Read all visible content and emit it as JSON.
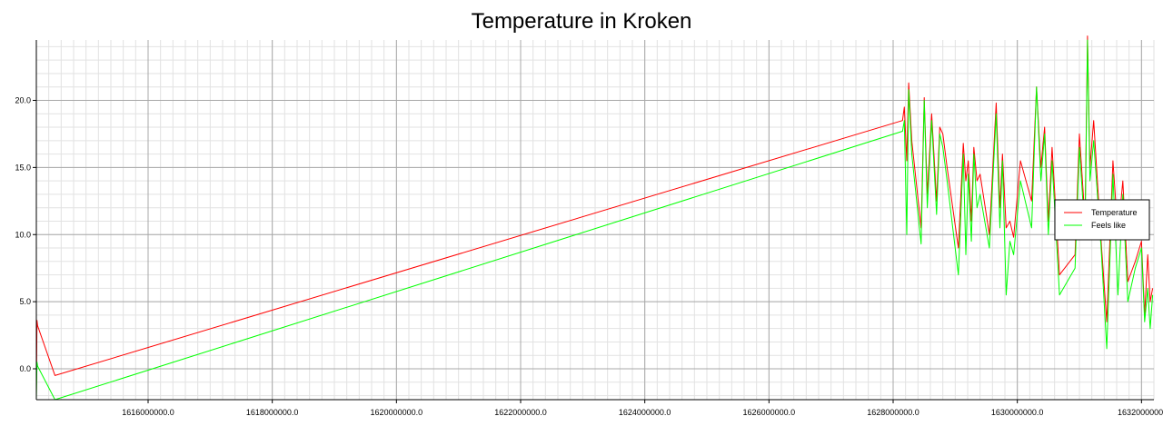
{
  "chart_data": {
    "type": "line",
    "title": "Temperature in Kroken",
    "xlabel": "",
    "ylabel": "",
    "xlim": [
      1614200000,
      1632200000
    ],
    "ylim": [
      -2.3,
      24.5
    ],
    "grid": true,
    "legend_position": "right",
    "x_ticks": [
      1616000000,
      1618000000,
      1620000000,
      1622000000,
      1624000000,
      1626000000,
      1628000000,
      1630000000,
      1632000000
    ],
    "x_tick_labels": [
      "1616000000.0",
      "1618000000.0",
      "1620000000.0",
      "1622000000.0",
      "1624000000.0",
      "1626000000.0",
      "1628000000.0",
      "1630000000.0",
      "1632000000."
    ],
    "y_ticks": [
      0,
      5,
      10,
      15,
      20
    ],
    "y_tick_labels": [
      "0.0",
      "5.0",
      "10.0",
      "15.0",
      "20.0"
    ],
    "colors": {
      "temperature": "#ff0000",
      "feels_like": "#00ff00"
    },
    "series": [
      {
        "name": "Temperature",
        "color": "#ff0000",
        "x": [
          1614200000,
          1614210000,
          1614220000,
          1614500000,
          1628150000,
          1628180000,
          1628220000,
          1628250000,
          1628300000,
          1628450000,
          1628500000,
          1628550000,
          1628620000,
          1628700000,
          1628750000,
          1628800000,
          1628870000,
          1629050000,
          1629130000,
          1629170000,
          1629210000,
          1629260000,
          1629300000,
          1629350000,
          1629400000,
          1629550000,
          1629660000,
          1629720000,
          1629760000,
          1629820000,
          1629880000,
          1629940000,
          1630050000,
          1630230000,
          1630310000,
          1630380000,
          1630440000,
          1630500000,
          1630560000,
          1630680000,
          1630930000,
          1631000000,
          1631090000,
          1631130000,
          1631170000,
          1631230000,
          1631350000,
          1631440000,
          1631540000,
          1631620000,
          1631700000,
          1631780000,
          1631900000,
          1632000000,
          1632050000,
          1632100000,
          1632140000,
          1632180000
        ],
        "y": [
          -2.0,
          3.6,
          3.2,
          -0.5,
          18.5,
          19.5,
          15.5,
          21.3,
          17.0,
          10.5,
          20.2,
          13.0,
          19.0,
          12.5,
          18.0,
          17.5,
          15.0,
          9.0,
          16.8,
          14.0,
          15.5,
          11.0,
          16.5,
          14.0,
          14.5,
          10.0,
          19.8,
          12.0,
          16.0,
          10.5,
          11.0,
          9.8,
          15.5,
          12.5,
          21.0,
          15.0,
          18.0,
          11.0,
          16.5,
          7.0,
          8.5,
          17.5,
          11.0,
          24.8,
          15.0,
          18.5,
          9.5,
          3.5,
          15.5,
          10.0,
          14.0,
          6.5,
          8.0,
          9.5,
          4.0,
          8.5,
          5.0,
          6.0
        ]
      },
      {
        "name": "Feels like",
        "color": "#00ff00",
        "x": [
          1614200000,
          1614210000,
          1614220000,
          1614500000,
          1628150000,
          1628180000,
          1628220000,
          1628250000,
          1628300000,
          1628450000,
          1628500000,
          1628550000,
          1628620000,
          1628700000,
          1628750000,
          1628800000,
          1628870000,
          1629050000,
          1629130000,
          1629170000,
          1629210000,
          1629260000,
          1629300000,
          1629350000,
          1629400000,
          1629550000,
          1629660000,
          1629720000,
          1629760000,
          1629820000,
          1629880000,
          1629940000,
          1630050000,
          1630230000,
          1630310000,
          1630380000,
          1630440000,
          1630500000,
          1630560000,
          1630680000,
          1630930000,
          1631000000,
          1631090000,
          1631130000,
          1631170000,
          1631230000,
          1631350000,
          1631440000,
          1631540000,
          1631620000,
          1631700000,
          1631780000,
          1631900000,
          1632000000,
          1632050000,
          1632100000,
          1632140000,
          1632180000
        ],
        "y": [
          -2.3,
          0.5,
          0.2,
          -2.3,
          17.7,
          18.5,
          10.0,
          20.8,
          16.0,
          9.3,
          20.0,
          12.0,
          18.5,
          11.5,
          17.5,
          16.5,
          14.0,
          7.0,
          16.0,
          8.5,
          14.5,
          9.5,
          16.0,
          12.0,
          13.0,
          9.0,
          19.0,
          10.5,
          15.5,
          5.5,
          9.5,
          8.5,
          14.0,
          10.5,
          21.0,
          14.0,
          17.5,
          10.0,
          15.5,
          5.5,
          7.5,
          16.5,
          10.0,
          24.5,
          14.0,
          17.0,
          9.0,
          1.5,
          14.5,
          5.5,
          13.0,
          5.0,
          7.5,
          9.0,
          3.5,
          6.0,
          3.0,
          5.5
        ]
      }
    ]
  }
}
